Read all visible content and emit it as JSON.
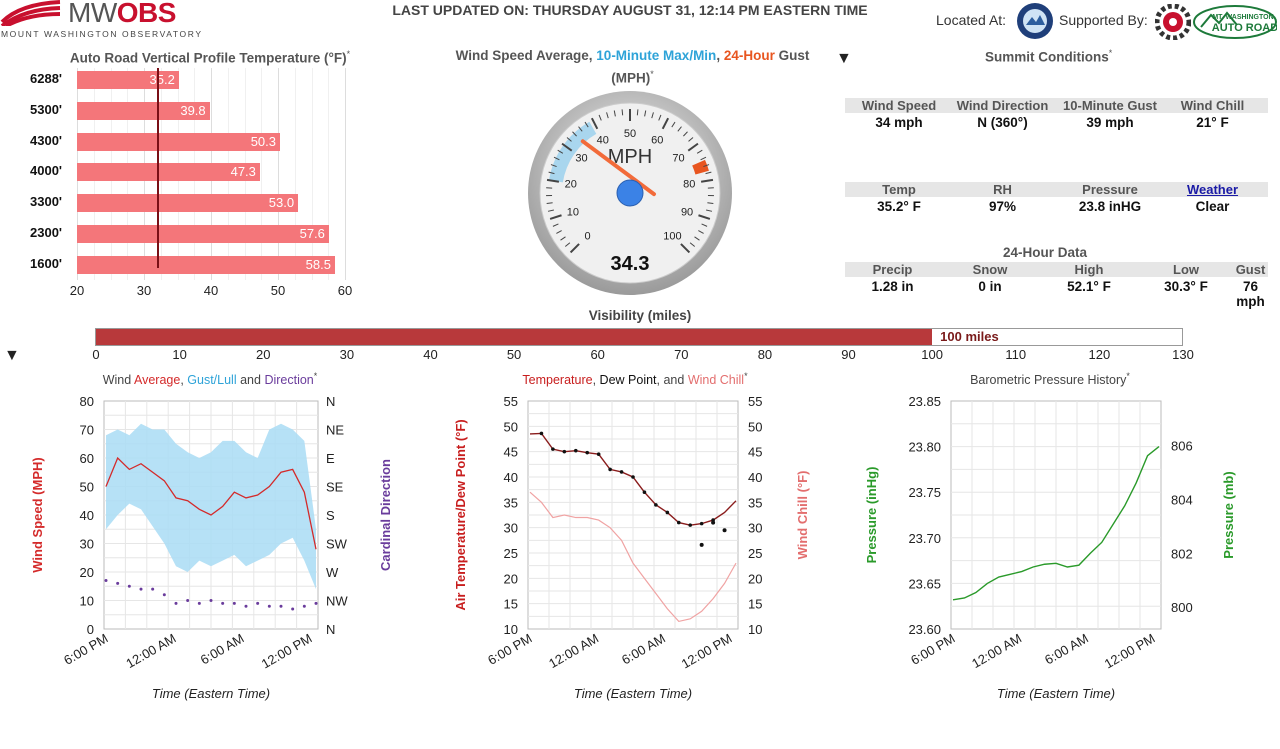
{
  "header": {
    "logo_main": "MW",
    "logo_obs": "OBS",
    "logo_sub": "MOUNT WASHINGTON OBSERVATORY",
    "last_updated": "LAST UPDATED ON: THURSDAY AUGUST 31, 12:14 PM EASTERN TIME",
    "located_at": "Located At:",
    "supported_by": "Supported By:",
    "sponsor_auto_road": "MT. WASHINGTON AUTO ROAD"
  },
  "profile": {
    "title": "Auto Road Vertical Profile Temperature (°F)",
    "star": "*",
    "rows": [
      {
        "elev": "6288'",
        "value": 35.2,
        "label": "35.2"
      },
      {
        "elev": "5300'",
        "value": 39.8,
        "label": "39.8"
      },
      {
        "elev": "4300'",
        "value": 50.3,
        "label": "50.3"
      },
      {
        "elev": "4000'",
        "value": 47.3,
        "label": "47.3"
      },
      {
        "elev": "3300'",
        "value": 53.0,
        "label": "53.0"
      },
      {
        "elev": "2300'",
        "value": 57.6,
        "label": "57.6"
      },
      {
        "elev": "1600'",
        "value": 58.5,
        "label": "58.5"
      }
    ],
    "xticks": [
      "20",
      "30",
      "40",
      "50",
      "60"
    ],
    "xlim": [
      20,
      60
    ],
    "freezing": 32,
    "bar_color": "#f4767a"
  },
  "gauge": {
    "title_prefix": "Wind Speed Average, ",
    "title_minmax": "10-Minute Max/Min",
    "title_sep": ", ",
    "title_gust": "24-Hour",
    "title_suffix": " Gust",
    "units_line": "(MPH)",
    "star": "*",
    "unit": "MPH",
    "value": 34.3,
    "value_label": "34.3",
    "min10": 20,
    "max10": 39,
    "gust24": 76,
    "ticks": [
      "0",
      "10",
      "20",
      "30",
      "40",
      "50",
      "60",
      "70",
      "80",
      "90",
      "100"
    ],
    "colors": {
      "minmax": "#2ea3d8",
      "gust": "#e8551f",
      "needle": "#f26b3a",
      "hub": "#3b82e6"
    }
  },
  "summit": {
    "title": "Summit Conditions",
    "star": "*",
    "row1": {
      "headers": [
        "Wind Speed",
        "Wind Direction",
        "10-Minute Gust",
        "Wind Chill"
      ],
      "values": [
        "34 mph",
        "N (360°)",
        "39 mph",
        "21° F"
      ]
    },
    "row2": {
      "headers": [
        "Temp",
        "RH",
        "Pressure",
        "Weather"
      ],
      "values": [
        "35.2° F",
        "97%",
        "23.8 inHG",
        "Clear"
      ]
    },
    "data24_title": "24-Hour Data",
    "row3": {
      "headers": [
        "Precip",
        "Snow",
        "High",
        "Low",
        "Gust"
      ],
      "values": [
        "1.28 in",
        "0 in",
        "52.1° F",
        "30.3° F",
        "76 mph"
      ]
    }
  },
  "visibility": {
    "title": "Visibility (miles)",
    "value": 100,
    "label": "100 miles",
    "max": 130,
    "ticks": [
      "0",
      "10",
      "20",
      "30",
      "40",
      "50",
      "60",
      "70",
      "80",
      "90",
      "100",
      "110",
      "120",
      "130"
    ]
  },
  "wind_chart": {
    "title_a": "Wind ",
    "title_avg": "Average",
    "title_b": ", ",
    "title_gust": "Gust/Lull",
    "title_c": " and ",
    "title_dir": "Direction",
    "star": "*",
    "ylabel_left": "Wind Speed (MPH)",
    "ylabel_right": "Cardinal Direction",
    "xlabel": "Time (Eastern Time)",
    "yticks": [
      "0",
      "10",
      "20",
      "30",
      "40",
      "50",
      "60",
      "70",
      "80"
    ],
    "dir_ticks": [
      "N",
      "NW",
      "W",
      "SW",
      "S",
      "SE",
      "E",
      "NE",
      "N"
    ],
    "xticks": [
      "6:00 PM",
      "12:00 AM",
      "6:00 AM",
      "12:00 PM"
    ]
  },
  "temp_chart": {
    "title_temp": "Temperature",
    "title_sep1": ", ",
    "title_dew": "Dew Point",
    "title_sep2": ", and ",
    "title_chill": "Wind Chill",
    "star": "*",
    "ylabel_left": "Air Temperature/Dew Point (°F)",
    "ylabel_right": "Wind Chill (°F)",
    "xlabel": "Time (Eastern Time)",
    "yticks": [
      "10",
      "15",
      "20",
      "25",
      "30",
      "35",
      "40",
      "45",
      "50",
      "55"
    ],
    "xticks": [
      "6:00 PM",
      "12:00 AM",
      "6:00 AM",
      "12:00 PM"
    ]
  },
  "pressure_chart": {
    "title": "Barometric Pressure History",
    "star": "*",
    "ylabel_left": "Pressure (inHg)",
    "ylabel_right": "Pressure (mb)",
    "xlabel": "Time (Eastern Time)",
    "yticks_left": [
      "23.60",
      "23.65",
      "23.70",
      "23.75",
      "23.80",
      "23.85"
    ],
    "yticks_right": [
      "800",
      "802",
      "804",
      "806"
    ],
    "xticks": [
      "6:00 PM",
      "12:00 AM",
      "6:00 AM",
      "12:00 PM"
    ]
  },
  "chart_data": [
    {
      "type": "bar",
      "title": "Auto Road Vertical Profile Temperature (°F)",
      "categories": [
        "6288'",
        "5300'",
        "4300'",
        "4000'",
        "3300'",
        "2300'",
        "1600'"
      ],
      "values": [
        35.2,
        39.8,
        50.3,
        47.3,
        53.0,
        57.6,
        58.5
      ],
      "xlim": [
        20,
        60
      ]
    },
    {
      "type": "line",
      "title": "Wind Average, Gust/Lull and Direction",
      "xlabel": "Time (Eastern Time)",
      "ylabel": "Wind Speed (MPH)",
      "ylim": [
        0,
        80
      ],
      "x": [
        0,
        1,
        2,
        3,
        4,
        5,
        6,
        7,
        8,
        9,
        10,
        11,
        12,
        13,
        14,
        15,
        16,
        17,
        18
      ],
      "series": [
        {
          "name": "Average",
          "values": [
            50,
            60,
            56,
            58,
            55,
            52,
            46,
            45,
            42,
            40,
            43,
            48,
            46,
            47,
            50,
            55,
            56,
            48,
            28
          ]
        },
        {
          "name": "Gust",
          "values": [
            68,
            70,
            68,
            72,
            70,
            70,
            65,
            62,
            60,
            62,
            66,
            66,
            62,
            60,
            70,
            72,
            70,
            66,
            35
          ]
        },
        {
          "name": "Lull",
          "values": [
            35,
            40,
            44,
            42,
            36,
            30,
            22,
            20,
            24,
            22,
            24,
            26,
            22,
            24,
            26,
            30,
            32,
            24,
            14
          ]
        },
        {
          "name": "Direction",
          "values": [
            17,
            16,
            15,
            14,
            14,
            12,
            9,
            10,
            9,
            10,
            9,
            9,
            8,
            9,
            8,
            8,
            7,
            8,
            9
          ]
        }
      ]
    },
    {
      "type": "line",
      "title": "Temperature, Dew Point, and Wind Chill",
      "xlabel": "Time (Eastern Time)",
      "ylabel": "Air Temperature/Dew Point (°F)",
      "ylim": [
        10,
        55
      ],
      "x": [
        0,
        1,
        2,
        3,
        4,
        5,
        6,
        7,
        8,
        9,
        10,
        11,
        12,
        13,
        14,
        15,
        16,
        17,
        18
      ],
      "series": [
        {
          "name": "Temperature",
          "values": [
            48.5,
            48.6,
            45.5,
            45.0,
            45.2,
            44.8,
            44.5,
            41.5,
            41.0,
            40.0,
            37.0,
            34.5,
            33.0,
            31.0,
            30.5,
            30.8,
            31.5,
            33.0,
            35.3
          ]
        },
        {
          "name": "Dew Point",
          "values": [
            37.0,
            35.0,
            32.0,
            32.5,
            32.0,
            32.0,
            31.5,
            30.0,
            27.5,
            23.0,
            20.0,
            17.0,
            14.0,
            11.5,
            12.0,
            13.5,
            16.0,
            19.0,
            23.0
          ]
        },
        {
          "name": "Wind Chill",
          "values": [
            null,
            null,
            null,
            null,
            null,
            null,
            null,
            null,
            null,
            null,
            null,
            null,
            null,
            null,
            null,
            26.6,
            31.0,
            29.5,
            null
          ]
        }
      ]
    },
    {
      "type": "line",
      "title": "Barometric Pressure History",
      "xlabel": "Time (Eastern Time)",
      "ylabel": "Pressure (inHg)",
      "ylim": [
        23.6,
        23.85
      ],
      "x": [
        0,
        1,
        2,
        3,
        4,
        5,
        6,
        7,
        8,
        9,
        10,
        11,
        12,
        13,
        14,
        15,
        16,
        17,
        18
      ],
      "series": [
        {
          "name": "Pressure",
          "values": [
            23.632,
            23.634,
            23.64,
            23.65,
            23.657,
            23.66,
            23.663,
            23.668,
            23.671,
            23.672,
            23.668,
            23.67,
            23.683,
            23.695,
            23.715,
            23.735,
            23.76,
            23.79,
            23.8
          ]
        }
      ]
    }
  ]
}
